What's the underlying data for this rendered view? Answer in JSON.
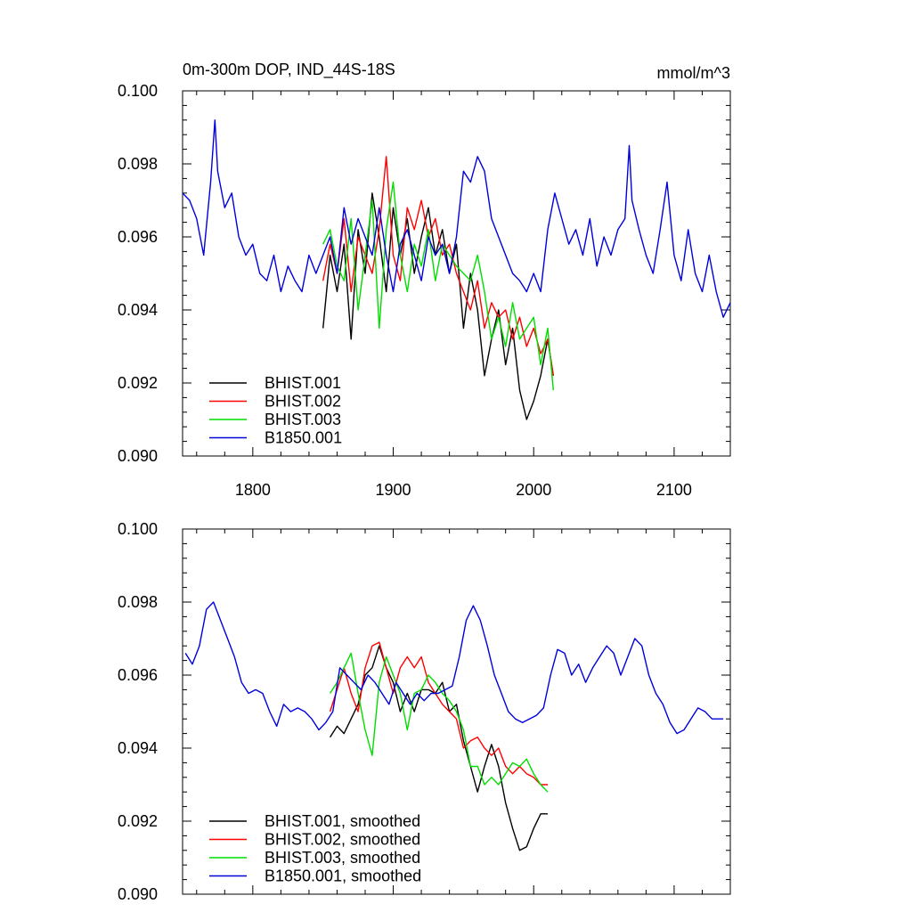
{
  "chart_data": [
    {
      "type": "line",
      "title": "0m-300m DOP, IND_44S-18S",
      "units": "mmol/m^3",
      "xlim": [
        1750,
        2140
      ],
      "ylim": [
        0.09,
        0.1
      ],
      "xticks": [
        "1800",
        "1900",
        "2000",
        "2100"
      ],
      "xtick_values": [
        1800,
        1900,
        2000,
        2100
      ],
      "yticks": [
        "0.090",
        "0.092",
        "0.094",
        "0.096",
        "0.098",
        "0.100"
      ],
      "ytick_values": [
        0.09,
        0.092,
        0.094,
        0.096,
        0.098,
        0.1
      ],
      "legend_position": "bottom-left",
      "series": [
        {
          "name": "BHIST.001",
          "color": "#000000",
          "x": [
            1850,
            1855,
            1860,
            1865,
            1870,
            1875,
            1880,
            1885,
            1890,
            1895,
            1900,
            1905,
            1910,
            1915,
            1920,
            1925,
            1930,
            1935,
            1940,
            1945,
            1950,
            1955,
            1960,
            1965,
            1970,
            1975,
            1980,
            1985,
            1990,
            1995,
            2000,
            2005,
            2010,
            2014
          ],
          "y": [
            0.0935,
            0.0955,
            0.0945,
            0.0958,
            0.0932,
            0.0962,
            0.095,
            0.0972,
            0.096,
            0.0945,
            0.0968,
            0.0955,
            0.0965,
            0.095,
            0.096,
            0.0968,
            0.0955,
            0.0962,
            0.095,
            0.0958,
            0.0935,
            0.095,
            0.094,
            0.0922,
            0.0932,
            0.094,
            0.0925,
            0.0935,
            0.0918,
            0.091,
            0.0915,
            0.0922,
            0.0932,
            0.0922
          ]
        },
        {
          "name": "BHIST.002",
          "color": "#ff0000",
          "x": [
            1850,
            1855,
            1860,
            1865,
            1870,
            1875,
            1880,
            1885,
            1890,
            1895,
            1900,
            1905,
            1910,
            1915,
            1920,
            1925,
            1930,
            1935,
            1940,
            1945,
            1950,
            1955,
            1960,
            1965,
            1970,
            1975,
            1980,
            1985,
            1990,
            1995,
            2000,
            2005,
            2010,
            2014
          ],
          "y": [
            0.0948,
            0.0958,
            0.095,
            0.0965,
            0.0945,
            0.096,
            0.0955,
            0.095,
            0.0962,
            0.0982,
            0.0955,
            0.0948,
            0.0968,
            0.0962,
            0.097,
            0.096,
            0.0965,
            0.0955,
            0.0958,
            0.095,
            0.0945,
            0.094,
            0.0948,
            0.0935,
            0.0942,
            0.0938,
            0.094,
            0.0932,
            0.0938,
            0.093,
            0.0935,
            0.0928,
            0.0932,
            0.0922
          ]
        },
        {
          "name": "BHIST.003",
          "color": "#00dd00",
          "x": [
            1850,
            1855,
            1860,
            1865,
            1870,
            1875,
            1880,
            1885,
            1890,
            1895,
            1900,
            1905,
            1910,
            1915,
            1920,
            1925,
            1930,
            1935,
            1940,
            1945,
            1950,
            1955,
            1960,
            1965,
            1970,
            1975,
            1980,
            1985,
            1990,
            1995,
            2000,
            2005,
            2010,
            2014
          ],
          "y": [
            0.0958,
            0.0962,
            0.0952,
            0.0948,
            0.0965,
            0.094,
            0.0955,
            0.097,
            0.0935,
            0.0962,
            0.0975,
            0.0955,
            0.0945,
            0.0958,
            0.0952,
            0.0962,
            0.0948,
            0.0958,
            0.0955,
            0.0952,
            0.095,
            0.0948,
            0.0955,
            0.0945,
            0.0932,
            0.0938,
            0.093,
            0.0942,
            0.0932,
            0.0935,
            0.0938,
            0.0925,
            0.0935,
            0.0918
          ]
        },
        {
          "name": "B1850.001",
          "color": "#0000dd",
          "x": [
            1750,
            1755,
            1760,
            1765,
            1770,
            1773,
            1775,
            1780,
            1785,
            1790,
            1795,
            1800,
            1805,
            1810,
            1815,
            1820,
            1825,
            1830,
            1835,
            1840,
            1845,
            1850,
            1855,
            1860,
            1865,
            1870,
            1875,
            1880,
            1885,
            1890,
            1895,
            1900,
            1905,
            1910,
            1915,
            1920,
            1925,
            1930,
            1935,
            1940,
            1945,
            1950,
            1955,
            1960,
            1965,
            1970,
            1975,
            1980,
            1985,
            1990,
            1995,
            2000,
            2005,
            2010,
            2015,
            2020,
            2025,
            2030,
            2035,
            2040,
            2045,
            2050,
            2055,
            2060,
            2065,
            2068,
            2070,
            2075,
            2080,
            2085,
            2090,
            2095,
            2100,
            2105,
            2110,
            2115,
            2120,
            2125,
            2130,
            2135,
            2140
          ],
          "y": [
            0.0972,
            0.097,
            0.0965,
            0.0955,
            0.0975,
            0.0992,
            0.0978,
            0.0968,
            0.0972,
            0.096,
            0.0955,
            0.0958,
            0.095,
            0.0948,
            0.0955,
            0.0945,
            0.0952,
            0.0948,
            0.0945,
            0.0955,
            0.095,
            0.0955,
            0.096,
            0.095,
            0.0968,
            0.0958,
            0.0965,
            0.096,
            0.0955,
            0.0968,
            0.0955,
            0.0945,
            0.0958,
            0.0962,
            0.0955,
            0.0948,
            0.096,
            0.0955,
            0.0958,
            0.095,
            0.096,
            0.0978,
            0.0975,
            0.0982,
            0.0978,
            0.0965,
            0.096,
            0.0955,
            0.095,
            0.0948,
            0.0945,
            0.095,
            0.0945,
            0.0962,
            0.0972,
            0.0965,
            0.0958,
            0.0962,
            0.0955,
            0.0965,
            0.0952,
            0.096,
            0.0955,
            0.0962,
            0.0965,
            0.0985,
            0.097,
            0.0962,
            0.0955,
            0.095,
            0.0962,
            0.0975,
            0.0955,
            0.0948,
            0.0962,
            0.095,
            0.0945,
            0.0955,
            0.0945,
            0.0938,
            0.0942
          ]
        }
      ]
    },
    {
      "type": "line",
      "xlim": [
        1750,
        2140
      ],
      "ylim": [
        0.09,
        0.1
      ],
      "yticks": [
        "0.090",
        "0.092",
        "0.094",
        "0.096",
        "0.098",
        "0.100"
      ],
      "ytick_values": [
        0.09,
        0.092,
        0.094,
        0.096,
        0.098,
        0.1
      ],
      "legend_position": "bottom-left",
      "series": [
        {
          "name": "BHIST.001, smoothed",
          "color": "#000000",
          "x": [
            1855,
            1860,
            1865,
            1870,
            1875,
            1880,
            1885,
            1890,
            1895,
            1900,
            1905,
            1910,
            1915,
            1920,
            1925,
            1930,
            1935,
            1940,
            1945,
            1950,
            1955,
            1960,
            1965,
            1970,
            1975,
            1980,
            1985,
            1990,
            1995,
            2000,
            2005,
            2010
          ],
          "y": [
            0.0943,
            0.0946,
            0.0944,
            0.0948,
            0.0952,
            0.096,
            0.0962,
            0.0968,
            0.0962,
            0.0958,
            0.095,
            0.0955,
            0.095,
            0.0956,
            0.0956,
            0.0955,
            0.0958,
            0.095,
            0.0952,
            0.0942,
            0.0935,
            0.0928,
            0.0935,
            0.0941,
            0.0935,
            0.0925,
            0.0918,
            0.0912,
            0.0913,
            0.0918,
            0.0922,
            0.0922
          ]
        },
        {
          "name": "BHIST.002, smoothed",
          "color": "#ff0000",
          "x": [
            1855,
            1860,
            1865,
            1870,
            1875,
            1880,
            1885,
            1890,
            1895,
            1900,
            1905,
            1910,
            1915,
            1920,
            1925,
            1930,
            1935,
            1940,
            1945,
            1950,
            1955,
            1960,
            1965,
            1970,
            1975,
            1980,
            1985,
            1990,
            1995,
            2000,
            2005,
            2010
          ],
          "y": [
            0.095,
            0.0956,
            0.0962,
            0.0955,
            0.095,
            0.0962,
            0.0968,
            0.0969,
            0.0962,
            0.0955,
            0.0962,
            0.0965,
            0.0962,
            0.0965,
            0.0958,
            0.0955,
            0.0952,
            0.095,
            0.0948,
            0.094,
            0.0942,
            0.0943,
            0.094,
            0.0938,
            0.094,
            0.0935,
            0.0933,
            0.0935,
            0.0933,
            0.0932,
            0.093,
            0.093
          ]
        },
        {
          "name": "BHIST.003, smoothed",
          "color": "#00dd00",
          "x": [
            1855,
            1860,
            1865,
            1870,
            1875,
            1880,
            1885,
            1890,
            1895,
            1900,
            1905,
            1910,
            1915,
            1920,
            1925,
            1930,
            1935,
            1940,
            1945,
            1950,
            1955,
            1960,
            1965,
            1970,
            1975,
            1980,
            1985,
            1990,
            1995,
            2000,
            2005,
            2010
          ],
          "y": [
            0.0955,
            0.0958,
            0.0962,
            0.0966,
            0.0955,
            0.0945,
            0.0938,
            0.0958,
            0.0965,
            0.096,
            0.0955,
            0.0945,
            0.0955,
            0.0956,
            0.096,
            0.0958,
            0.0955,
            0.0953,
            0.095,
            0.0945,
            0.0935,
            0.0935,
            0.093,
            0.0932,
            0.093,
            0.0933,
            0.0936,
            0.0935,
            0.0937,
            0.0933,
            0.093,
            0.0928
          ]
        },
        {
          "name": "B1850.001, smoothed",
          "color": "#0000dd",
          "x": [
            1752,
            1757,
            1762,
            1767,
            1772,
            1777,
            1782,
            1787,
            1792,
            1797,
            1802,
            1807,
            1812,
            1817,
            1822,
            1827,
            1832,
            1837,
            1842,
            1847,
            1852,
            1857,
            1862,
            1867,
            1872,
            1877,
            1882,
            1887,
            1892,
            1897,
            1902,
            1907,
            1912,
            1917,
            1922,
            1927,
            1932,
            1937,
            1942,
            1947,
            1952,
            1957,
            1962,
            1967,
            1972,
            1977,
            1982,
            1987,
            1992,
            1997,
            2002,
            2007,
            2012,
            2017,
            2022,
            2027,
            2032,
            2037,
            2042,
            2047,
            2052,
            2057,
            2062,
            2067,
            2072,
            2077,
            2082,
            2087,
            2092,
            2097,
            2102,
            2107,
            2112,
            2117,
            2122,
            2127,
            2132,
            2135
          ],
          "y": [
            0.0966,
            0.0963,
            0.0968,
            0.0978,
            0.098,
            0.0975,
            0.097,
            0.0965,
            0.0958,
            0.0955,
            0.0956,
            0.0955,
            0.095,
            0.0946,
            0.0952,
            0.095,
            0.0951,
            0.095,
            0.0948,
            0.0945,
            0.0947,
            0.095,
            0.0962,
            0.096,
            0.0958,
            0.0956,
            0.096,
            0.0958,
            0.0955,
            0.0952,
            0.0958,
            0.0955,
            0.0952,
            0.0955,
            0.0953,
            0.0955,
            0.0955,
            0.0956,
            0.0957,
            0.0965,
            0.0975,
            0.0979,
            0.0975,
            0.0968,
            0.096,
            0.0955,
            0.095,
            0.0948,
            0.0947,
            0.0948,
            0.0949,
            0.0951,
            0.096,
            0.0967,
            0.0966,
            0.096,
            0.0963,
            0.0958,
            0.0962,
            0.0965,
            0.0968,
            0.0966,
            0.096,
            0.0965,
            0.097,
            0.0968,
            0.096,
            0.0955,
            0.0952,
            0.0947,
            0.0944,
            0.0945,
            0.0948,
            0.0951,
            0.095,
            0.0948,
            0.0948,
            0.0948
          ]
        }
      ]
    }
  ]
}
